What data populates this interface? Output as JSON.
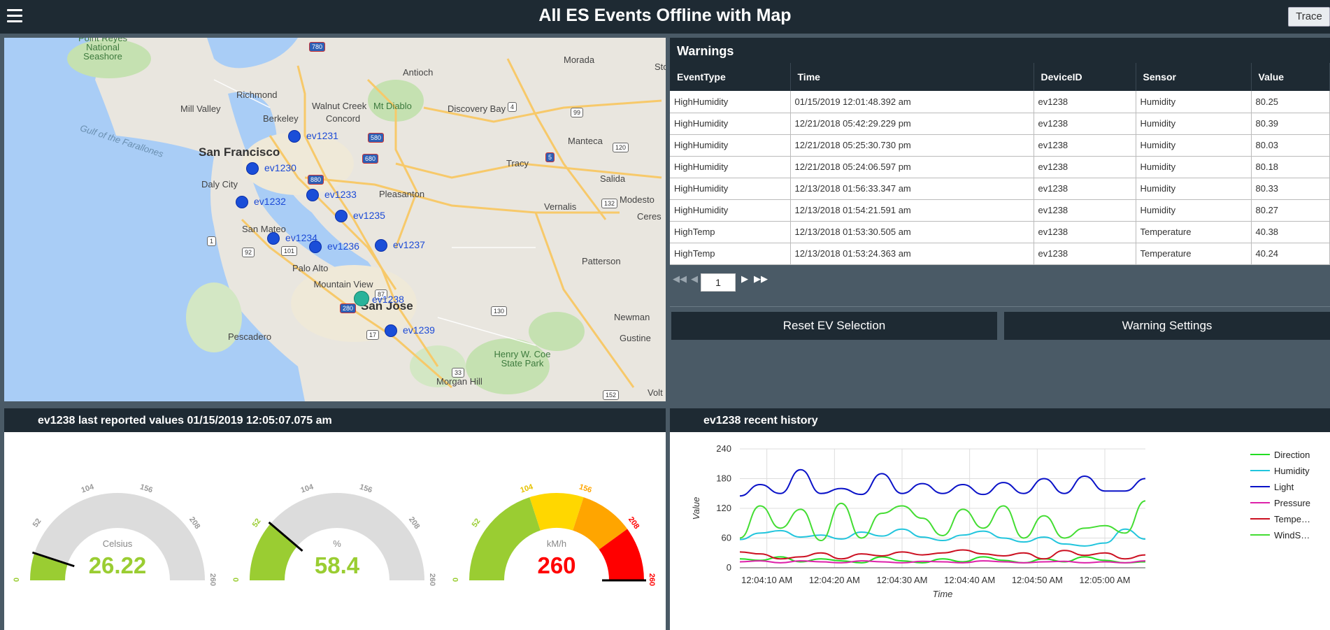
{
  "app": {
    "title": "All ES Events Offline with Map",
    "trace_label": "Trace"
  },
  "map": {
    "places": [
      {
        "name": "Point Reyes National Seashore",
        "kind": "park"
      },
      {
        "name": "Richmond"
      },
      {
        "name": "Mill Valley"
      },
      {
        "name": "Concord"
      },
      {
        "name": "Antioch"
      },
      {
        "name": "Morada"
      },
      {
        "name": "Stockton"
      },
      {
        "name": "Walnut Creek"
      },
      {
        "name": "Mt Diablo",
        "kind": "park"
      },
      {
        "name": "Discovery Bay"
      },
      {
        "name": "Berkeley"
      },
      {
        "name": "Gulf of the Farallones",
        "kind": "water"
      },
      {
        "name": "San Francisco",
        "kind": "big"
      },
      {
        "name": "Manteca"
      },
      {
        "name": "Tracy"
      },
      {
        "name": "Daly City"
      },
      {
        "name": "Pleasanton"
      },
      {
        "name": "Salida"
      },
      {
        "name": "Modesto"
      },
      {
        "name": "Vernalis"
      },
      {
        "name": "Ceres"
      },
      {
        "name": "San Mateo"
      },
      {
        "name": "Palo Alto"
      },
      {
        "name": "Patterson"
      },
      {
        "name": "Mountain View"
      },
      {
        "name": "San Jose",
        "kind": "big"
      },
      {
        "name": "Newman"
      },
      {
        "name": "Pescadero"
      },
      {
        "name": "Gustine"
      },
      {
        "name": "Henry W. Coe State Park",
        "kind": "park"
      },
      {
        "name": "Morgan Hill"
      },
      {
        "name": "Volt"
      }
    ],
    "highways": [
      "580",
      "780",
      "680",
      "880",
      "5",
      "120",
      "99",
      "4",
      "132",
      "92",
      "101",
      "1",
      "280",
      "87",
      "17",
      "130",
      "152",
      "33"
    ],
    "markers": [
      {
        "id": "ev1231",
        "selected": false
      },
      {
        "id": "ev1230",
        "selected": false
      },
      {
        "id": "ev1232",
        "selected": false
      },
      {
        "id": "ev1233",
        "selected": false
      },
      {
        "id": "ev1235",
        "selected": false
      },
      {
        "id": "ev1234",
        "selected": false
      },
      {
        "id": "ev1236",
        "selected": false
      },
      {
        "id": "ev1237",
        "selected": false
      },
      {
        "id": "ev1238",
        "selected": true
      },
      {
        "id": "ev1239",
        "selected": false
      }
    ]
  },
  "warnings": {
    "title": "Warnings",
    "columns": [
      "EventType",
      "Time",
      "DeviceID",
      "Sensor",
      "Value"
    ],
    "rows": [
      [
        "HighHumidity",
        "01/15/2019 12:01:48.392 am",
        "ev1238",
        "Humidity",
        "80.25"
      ],
      [
        "HighHumidity",
        "12/21/2018 05:42:29.229 pm",
        "ev1238",
        "Humidity",
        "80.39"
      ],
      [
        "HighHumidity",
        "12/21/2018 05:25:30.730 pm",
        "ev1238",
        "Humidity",
        "80.03"
      ],
      [
        "HighHumidity",
        "12/21/2018 05:24:06.597 pm",
        "ev1238",
        "Humidity",
        "80.18"
      ],
      [
        "HighHumidity",
        "12/13/2018 01:56:33.347 am",
        "ev1238",
        "Humidity",
        "80.33"
      ],
      [
        "HighHumidity",
        "12/13/2018 01:54:21.591 am",
        "ev1238",
        "Humidity",
        "80.27"
      ],
      [
        "HighTemp",
        "12/13/2018 01:53:30.505 am",
        "ev1238",
        "Temperature",
        "40.38"
      ],
      [
        "HighTemp",
        "12/13/2018 01:53:24.363 am",
        "ev1238",
        "Temperature",
        "40.24"
      ]
    ],
    "page": "1"
  },
  "actions": {
    "reset_label": "Reset EV Selection",
    "settings_label": "Warning Settings"
  },
  "gauges_panel": {
    "title": "ev1238 last reported values 01/15/2019 12:05:07.075 am",
    "ticks": [
      "0",
      "52",
      "104",
      "156",
      "208",
      "260"
    ],
    "gauges": [
      {
        "unit": "Celsius",
        "value": "26.22",
        "numeric": 26.22,
        "max": 260,
        "color": "#9acd32",
        "style": "needle"
      },
      {
        "unit": "%",
        "value": "58.4",
        "numeric": 58.4,
        "max": 260,
        "color": "#9acd32",
        "style": "needle"
      },
      {
        "unit": "kM/h",
        "value": "260",
        "numeric": 260,
        "max": 260,
        "color": "#ff0000",
        "style": "bands"
      }
    ],
    "band_colors": [
      "#9acd32",
      "#ffd700",
      "#ffa500",
      "#ff0000"
    ]
  },
  "history_panel": {
    "title": "ev1238 recent history"
  },
  "chart_data": {
    "type": "line",
    "xlabel": "Time",
    "ylabel": "Value",
    "ylim": [
      0,
      240
    ],
    "yticks": [
      "0",
      "60",
      "120",
      "180",
      "240"
    ],
    "xticks": [
      "12:04:10 AM",
      "12:04:20 AM",
      "12:04:30 AM",
      "12:04:40 AM",
      "12:04:50 AM",
      "12:05:00 AM"
    ],
    "x": [
      0,
      3,
      6,
      9,
      12,
      15,
      18,
      21,
      24,
      27,
      30,
      33,
      36,
      39,
      42,
      45,
      48,
      51,
      54,
      57,
      60
    ],
    "grid": true,
    "legend_position": "right",
    "series": [
      {
        "name": "Direction",
        "color": "#22dd22",
        "values": [
          18,
          15,
          22,
          12,
          18,
          14,
          10,
          22,
          14,
          10,
          18,
          12,
          22,
          15,
          10,
          18,
          12,
          22,
          15,
          10,
          12
        ]
      },
      {
        "name": "Humidity",
        "color": "#22c5dd",
        "values": [
          57,
          70,
          75,
          62,
          66,
          58,
          72,
          64,
          78,
          62,
          55,
          66,
          74,
          60,
          52,
          62,
          48,
          44,
          50,
          78,
          58
        ]
      },
      {
        "name": "Light",
        "color": "#0a12c8",
        "values": [
          145,
          168,
          150,
          198,
          150,
          160,
          148,
          190,
          150,
          170,
          150,
          168,
          148,
          172,
          150,
          180,
          150,
          185,
          155,
          155,
          180
        ]
      },
      {
        "name": "Pressure",
        "color": "#dd22aa",
        "values": [
          12,
          14,
          10,
          14,
          12,
          10,
          14,
          12,
          10,
          13,
          12,
          10,
          14,
          12,
          10,
          12,
          13,
          10,
          12,
          10,
          14
        ]
      },
      {
        "name": "Tempe…",
        "color": "#cc1122",
        "values": [
          32,
          28,
          18,
          22,
          30,
          18,
          28,
          24,
          32,
          26,
          30,
          36,
          28,
          24,
          30,
          18,
          35,
          25,
          30,
          18,
          26
        ]
      },
      {
        "name": "WindS…",
        "color": "#44dd33",
        "values": [
          60,
          125,
          80,
          118,
          55,
          130,
          60,
          110,
          125,
          100,
          65,
          118,
          80,
          125,
          60,
          105,
          60,
          80,
          85,
          70,
          135
        ]
      }
    ]
  }
}
